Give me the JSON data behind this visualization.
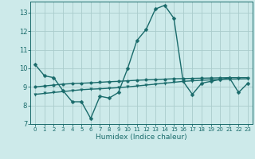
{
  "xlabel": "Humidex (Indice chaleur)",
  "background_color": "#cdeaea",
  "grid_color": "#aacccc",
  "line_color": "#1a6b6b",
  "x_data": [
    0,
    1,
    2,
    3,
    4,
    5,
    6,
    7,
    8,
    9,
    10,
    11,
    12,
    13,
    14,
    15,
    16,
    17,
    18,
    19,
    20,
    21,
    22,
    23
  ],
  "y_main": [
    10.2,
    9.6,
    9.5,
    8.8,
    8.2,
    8.2,
    7.3,
    8.5,
    8.4,
    8.7,
    10.0,
    11.5,
    12.1,
    13.2,
    13.4,
    12.7,
    9.3,
    8.6,
    9.2,
    9.3,
    9.4,
    9.5,
    8.7,
    9.2
  ],
  "y_line1": [
    9.0,
    9.05,
    9.1,
    9.15,
    9.18,
    9.2,
    9.22,
    9.25,
    9.28,
    9.3,
    9.33,
    9.36,
    9.38,
    9.4,
    9.42,
    9.44,
    9.45,
    9.46,
    9.47,
    9.48,
    9.49,
    9.5,
    9.5,
    9.5
  ],
  "y_line2": [
    8.6,
    8.65,
    8.7,
    8.75,
    8.8,
    8.85,
    8.88,
    8.9,
    8.93,
    8.96,
    9.0,
    9.05,
    9.1,
    9.15,
    9.2,
    9.25,
    9.3,
    9.33,
    9.36,
    9.38,
    9.4,
    9.42,
    9.43,
    9.44
  ],
  "ylim": [
    7,
    13.6
  ],
  "yticks": [
    7,
    8,
    9,
    10,
    11,
    12,
    13
  ],
  "xticks": [
    0,
    1,
    2,
    3,
    4,
    5,
    6,
    7,
    8,
    9,
    10,
    11,
    12,
    13,
    14,
    15,
    16,
    17,
    18,
    19,
    20,
    21,
    22,
    23
  ],
  "linewidth": 1.0,
  "markersize": 2.5
}
